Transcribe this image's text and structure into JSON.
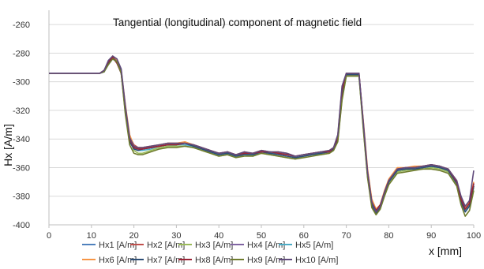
{
  "chart_data": {
    "type": "line",
    "title": "Tangential (longitudinal) component of magnetic field",
    "xlabel": "x [mm]",
    "ylabel": "Hx  [A/m]",
    "xlim": [
      0,
      100
    ],
    "ylim": [
      -400,
      -250
    ],
    "x_ticks": [
      "0",
      "10",
      "20",
      "30",
      "40",
      "50",
      "60",
      "70",
      "80",
      "90",
      "100"
    ],
    "y_ticks": [
      "-260",
      "-280",
      "-300",
      "-320",
      "-340",
      "-360",
      "-380",
      "-400"
    ],
    "grid": "horizontal",
    "legend_position": "bottom",
    "x": [
      0,
      2,
      4,
      6,
      8,
      10,
      12,
      13,
      14,
      15,
      16,
      17,
      18,
      19,
      20,
      21,
      22,
      24,
      26,
      28,
      30,
      32,
      34,
      36,
      38,
      40,
      42,
      44,
      46,
      48,
      50,
      52,
      54,
      56,
      58,
      60,
      62,
      64,
      66,
      67,
      68,
      69,
      70,
      71,
      72,
      73,
      74,
      75,
      76,
      77,
      78,
      79,
      80,
      82,
      84,
      86,
      88,
      90,
      92,
      94,
      96,
      97,
      98,
      99,
      100
    ],
    "series": [
      {
        "name": "Hx1 [A/m]",
        "color": "#4f81bd",
        "values": [
          -294,
          -294,
          -294,
          -294,
          -294,
          -294,
          -294,
          -292,
          -286,
          -283,
          -287,
          -294,
          -320,
          -340,
          -346,
          -347,
          -347,
          -346,
          -345,
          -344,
          -344,
          -343,
          -344,
          -346,
          -348,
          -351,
          -349,
          -352,
          -349,
          -351,
          -349,
          -350,
          -349,
          -350,
          -353,
          -352,
          -350,
          -350,
          -349,
          -347,
          -340,
          -310,
          -295,
          -295,
          -295,
          -295,
          -330,
          -365,
          -385,
          -391,
          -387,
          -378,
          -370,
          -362,
          -361,
          -361,
          -360,
          -359,
          -360,
          -361,
          -370,
          -382,
          -389,
          -385,
          -372
        ]
      },
      {
        "name": "Hx2 [A/m]",
        "color": "#c0504d",
        "values": [
          -294,
          -294,
          -294,
          -294,
          -294,
          -294,
          -294,
          -293,
          -287,
          -284,
          -286,
          -293,
          -318,
          -338,
          -344,
          -346,
          -346,
          -345,
          -344,
          -343,
          -343,
          -343,
          -345,
          -347,
          -349,
          -350,
          -350,
          -351,
          -350,
          -350,
          -348,
          -349,
          -350,
          -351,
          -352,
          -351,
          -350,
          -349,
          -349,
          -346,
          -338,
          -305,
          -295,
          -295,
          -295,
          -295,
          -328,
          -362,
          -383,
          -390,
          -386,
          -377,
          -369,
          -361,
          -360,
          -360,
          -359,
          -359,
          -359,
          -362,
          -371,
          -383,
          -390,
          -386,
          -373
        ]
      },
      {
        "name": "Hx3 [A/m]",
        "color": "#9bbb59",
        "values": [
          -294,
          -294,
          -294,
          -294,
          -294,
          -294,
          -294,
          -292,
          -286,
          -283,
          -286,
          -292,
          -317,
          -340,
          -348,
          -350,
          -350,
          -348,
          -346,
          -345,
          -345,
          -345,
          -346,
          -348,
          -350,
          -352,
          -351,
          -353,
          -351,
          -352,
          -350,
          -351,
          -352,
          -353,
          -354,
          -352,
          -351,
          -351,
          -350,
          -348,
          -341,
          -312,
          -296,
          -296,
          -296,
          -296,
          -332,
          -366,
          -387,
          -392,
          -388,
          -379,
          -371,
          -363,
          -362,
          -361,
          -361,
          -360,
          -361,
          -363,
          -372,
          -384,
          -390,
          -387,
          -374
        ]
      },
      {
        "name": "Hx4 [A/m]",
        "color": "#8064a2",
        "values": [
          -294,
          -294,
          -294,
          -294,
          -294,
          -294,
          -294,
          -292,
          -287,
          -283,
          -285,
          -292,
          -319,
          -339,
          -346,
          -347,
          -347,
          -346,
          -345,
          -344,
          -343,
          -343,
          -344,
          -346,
          -348,
          -351,
          -349,
          -351,
          -350,
          -351,
          -349,
          -350,
          -350,
          -351,
          -352,
          -351,
          -350,
          -350,
          -349,
          -347,
          -339,
          -307,
          -295,
          -295,
          -295,
          -295,
          -329,
          -364,
          -384,
          -391,
          -387,
          -377,
          -369,
          -361,
          -361,
          -360,
          -360,
          -359,
          -360,
          -361,
          -370,
          -382,
          -389,
          -385,
          -371
        ]
      },
      {
        "name": "Hx5 [A/m]",
        "color": "#4bacc6",
        "values": [
          -294,
          -294,
          -294,
          -294,
          -294,
          -294,
          -294,
          -293,
          -288,
          -284,
          -286,
          -293,
          -321,
          -341,
          -347,
          -348,
          -348,
          -347,
          -345,
          -344,
          -344,
          -344,
          -345,
          -347,
          -349,
          -351,
          -350,
          -352,
          -350,
          -351,
          -349,
          -350,
          -350,
          -351,
          -352,
          -351,
          -350,
          -350,
          -349,
          -347,
          -340,
          -309,
          -295,
          -295,
          -295,
          -295,
          -330,
          -364,
          -385,
          -391,
          -387,
          -378,
          -370,
          -362,
          -361,
          -360,
          -360,
          -359,
          -360,
          -362,
          -371,
          -383,
          -390,
          -386,
          -372
        ]
      },
      {
        "name": "Hx6 [A/m]",
        "color": "#f79646",
        "values": [
          -294,
          -294,
          -294,
          -294,
          -294,
          -294,
          -294,
          -292,
          -286,
          -282,
          -285,
          -292,
          -316,
          -337,
          -345,
          -346,
          -346,
          -345,
          -344,
          -343,
          -343,
          -342,
          -344,
          -346,
          -348,
          -350,
          -349,
          -351,
          -349,
          -350,
          -348,
          -349,
          -349,
          -350,
          -352,
          -351,
          -350,
          -349,
          -348,
          -346,
          -338,
          -304,
          -295,
          -295,
          -295,
          -295,
          -327,
          -361,
          -382,
          -389,
          -386,
          -376,
          -368,
          -360,
          -360,
          -359,
          -359,
          -358,
          -359,
          -361,
          -369,
          -381,
          -388,
          -384,
          -370
        ]
      },
      {
        "name": "Hx7 [A/m]",
        "color": "#2c4d75",
        "values": [
          -294,
          -294,
          -294,
          -294,
          -294,
          -294,
          -294,
          -293,
          -287,
          -283,
          -286,
          -293,
          -322,
          -342,
          -347,
          -348,
          -347,
          -346,
          -345,
          -344,
          -344,
          -343,
          -345,
          -347,
          -349,
          -351,
          -350,
          -352,
          -351,
          -351,
          -349,
          -350,
          -351,
          -352,
          -353,
          -352,
          -351,
          -350,
          -349,
          -347,
          -341,
          -311,
          -295,
          -295,
          -295,
          -295,
          -331,
          -366,
          -386,
          -392,
          -388,
          -378,
          -370,
          -362,
          -361,
          -361,
          -360,
          -359,
          -360,
          -362,
          -371,
          -384,
          -391,
          -387,
          -373
        ]
      },
      {
        "name": "Hx8 [A/m]",
        "color": "#9b2335",
        "values": [
          -294,
          -294,
          -294,
          -294,
          -294,
          -294,
          -294,
          -292,
          -286,
          -283,
          -287,
          -294,
          -320,
          -340,
          -346,
          -347,
          -347,
          -346,
          -345,
          -344,
          -344,
          -343,
          -344,
          -346,
          -348,
          -350,
          -349,
          -351,
          -350,
          -350,
          -349,
          -349,
          -350,
          -351,
          -352,
          -351,
          -350,
          -349,
          -349,
          -346,
          -339,
          -306,
          -294,
          -294,
          -294,
          -294,
          -329,
          -363,
          -384,
          -390,
          -386,
          -377,
          -369,
          -361,
          -360,
          -360,
          -359,
          -358,
          -359,
          -361,
          -370,
          -382,
          -389,
          -385,
          -371
        ]
      },
      {
        "name": "Hx9 [A/m]",
        "color": "#6f7c2e",
        "values": [
          -294,
          -294,
          -294,
          -294,
          -294,
          -294,
          -294,
          -293,
          -288,
          -284,
          -286,
          -294,
          -323,
          -344,
          -350,
          -351,
          -351,
          -349,
          -347,
          -346,
          -346,
          -345,
          -346,
          -348,
          -350,
          -352,
          -351,
          -353,
          -352,
          -352,
          -350,
          -351,
          -352,
          -353,
          -354,
          -353,
          -352,
          -351,
          -350,
          -348,
          -342,
          -313,
          -296,
          -296,
          -296,
          -296,
          -333,
          -367,
          -388,
          -393,
          -389,
          -380,
          -372,
          -364,
          -363,
          -362,
          -361,
          -361,
          -362,
          -364,
          -373,
          -386,
          -394,
          -390,
          -376
        ]
      },
      {
        "name": "Hx10 [A/m]",
        "color": "#604a7b",
        "values": [
          -294,
          -294,
          -294,
          -294,
          -294,
          -294,
          -294,
          -292,
          -285,
          -282,
          -284,
          -291,
          -317,
          -339,
          -345,
          -346,
          -346,
          -345,
          -344,
          -343,
          -343,
          -343,
          -344,
          -346,
          -348,
          -350,
          -349,
          -351,
          -349,
          -350,
          -348,
          -349,
          -349,
          -350,
          -352,
          -351,
          -350,
          -349,
          -348,
          -346,
          -337,
          -303,
          -294,
          -294,
          -294,
          -294,
          -328,
          -363,
          -384,
          -391,
          -387,
          -377,
          -369,
          -361,
          -360,
          -360,
          -359,
          -358,
          -359,
          -361,
          -369,
          -380,
          -387,
          -383,
          -362
        ]
      }
    ]
  }
}
